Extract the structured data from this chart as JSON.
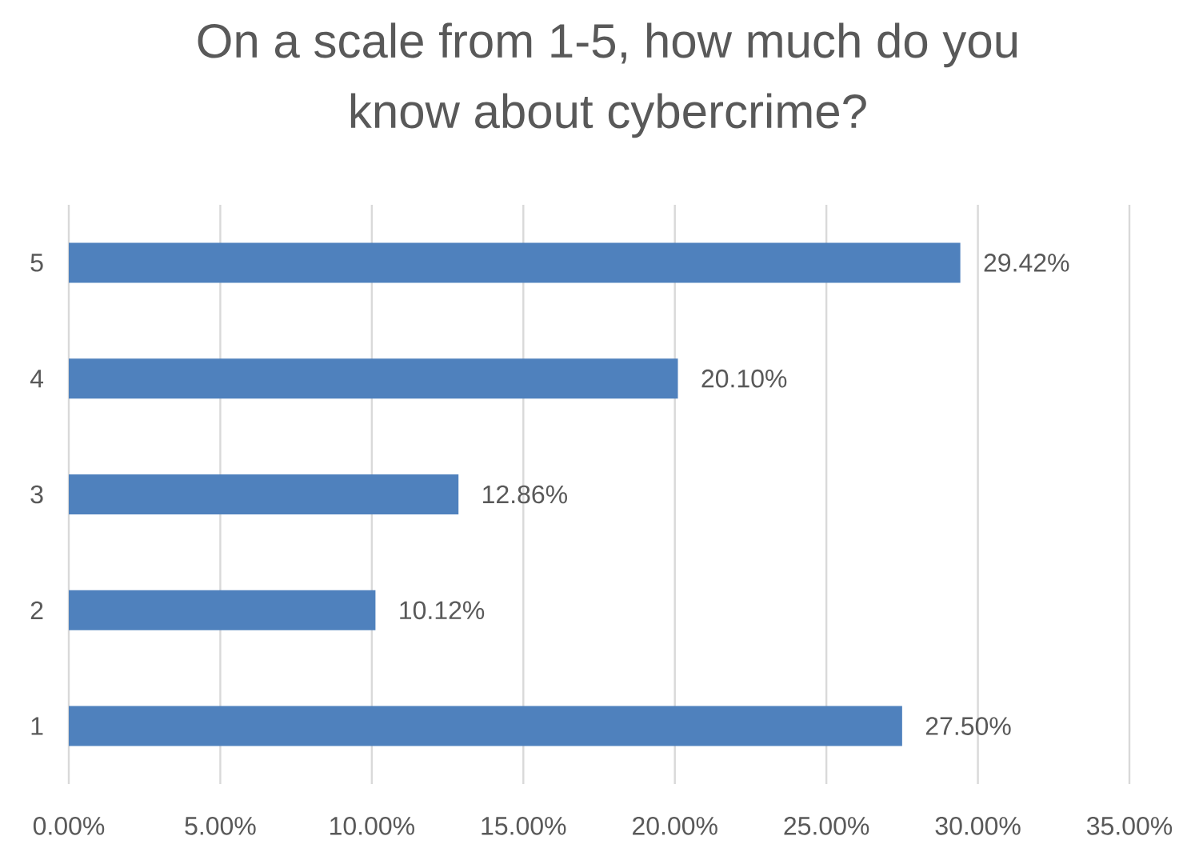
{
  "chart_data": {
    "type": "bar",
    "orientation": "horizontal",
    "title": "On a scale from 1-5, how much do you know about cybercrime?",
    "categories": [
      "5",
      "4",
      "3",
      "2",
      "1"
    ],
    "values": [
      29.42,
      20.1,
      12.86,
      10.12,
      27.5
    ],
    "value_labels": [
      "29.42%",
      "20.10%",
      "12.86%",
      "10.12%",
      "27.50%"
    ],
    "color": "#4f81bd",
    "xlim": [
      0,
      35
    ],
    "xticks": [
      {
        "value": 0,
        "label": "0.00%"
      },
      {
        "value": 5,
        "label": "5.00%"
      },
      {
        "value": 10,
        "label": "10.00%"
      },
      {
        "value": 15,
        "label": "15.00%"
      },
      {
        "value": 20,
        "label": "20.00%"
      },
      {
        "value": 25,
        "label": "25.00%"
      },
      {
        "value": 30,
        "label": "30.00%"
      },
      {
        "value": 35,
        "label": "35.00%"
      }
    ],
    "grid": "x"
  }
}
